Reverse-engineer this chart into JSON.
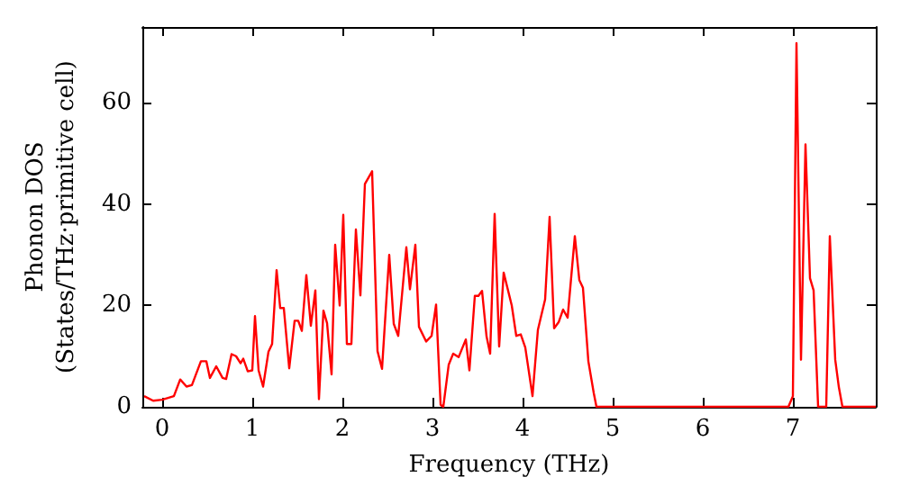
{
  "chart_data": {
    "type": "line",
    "xlabel": "Frequency (THz)",
    "ylabel": "Phonon DOS\n(States/THz·primitive cell)",
    "xlim": [
      -0.22,
      7.92
    ],
    "ylim": [
      0,
      75
    ],
    "xticks": [
      0,
      1,
      2,
      3,
      4,
      5,
      6,
      7
    ],
    "yticks": [
      0,
      20,
      40,
      60
    ],
    "grid": false,
    "marker": "none",
    "line_style": "solid",
    "series": [
      {
        "color": "#ff0000",
        "x": [
          -0.2,
          -0.1,
          0,
          0.13,
          0.2,
          0.27,
          0.33,
          0.43,
          0.49,
          0.53,
          0.6,
          0.67,
          0.71,
          0.77,
          0.82,
          0.87,
          0.9,
          0.95,
          1.0,
          1.03,
          1.07,
          1.12,
          1.18,
          1.22,
          1.27,
          1.31,
          1.35,
          1.41,
          1.47,
          1.51,
          1.55,
          1.6,
          1.65,
          1.7,
          1.74,
          1.79,
          1.83,
          1.88,
          1.92,
          1.97,
          2.01,
          2.05,
          2.1,
          2.15,
          2.2,
          2.25,
          2.33,
          2.39,
          2.44,
          2.52,
          2.57,
          2.62,
          2.71,
          2.75,
          2.81,
          2.85,
          2.93,
          2.99,
          3.04,
          3.09,
          3.12,
          3.18,
          3.23,
          3.29,
          3.37,
          3.41,
          3.47,
          3.51,
          3.55,
          3.6,
          3.64,
          3.69,
          3.74,
          3.79,
          3.88,
          3.93,
          3.98,
          4.03,
          4.11,
          4.17,
          4.21,
          4.25,
          4.3,
          4.35,
          4.4,
          4.45,
          4.5,
          4.58,
          4.63,
          4.67,
          4.73,
          4.79,
          4.82,
          6.95,
          7.0,
          7.04,
          7.09,
          7.14,
          7.19,
          7.23,
          7.28,
          7.37,
          7.41,
          7.47,
          7.51,
          7.55,
          7.92
        ],
        "values": [
          2.1,
          1.2,
          1.4,
          2.1,
          5.4,
          4,
          4.3,
          9,
          9,
          5.7,
          8,
          5.7,
          5.5,
          10.4,
          10,
          8.6,
          9.5,
          7,
          7.2,
          17.9,
          7.2,
          4,
          10.9,
          12.4,
          27,
          19.5,
          19.5,
          7.6,
          17,
          17,
          15,
          26,
          16,
          23,
          1.5,
          19,
          16.5,
          6.4,
          32,
          20,
          37.9,
          12.4,
          12.4,
          35,
          22,
          44,
          46.5,
          11,
          7.5,
          30,
          16.4,
          14,
          31.5,
          23.2,
          32,
          15.8,
          12.9,
          14,
          20.2,
          0.4,
          0,
          8.3,
          10.5,
          9.8,
          13.3,
          7.2,
          21.9,
          21.9,
          22.9,
          13.9,
          10.5,
          38.1,
          11.9,
          26.5,
          20,
          14,
          14.3,
          11.7,
          2.1,
          15.2,
          18.2,
          21.2,
          37.5,
          15.5,
          16.7,
          19.2,
          17.6,
          33.7,
          25,
          23.5,
          9,
          2.7,
          0,
          0,
          2.1,
          71.8,
          9.3,
          51.8,
          25.4,
          23,
          0,
          0,
          33.7,
          9.3,
          3.9,
          0,
          0
        ]
      }
    ]
  }
}
